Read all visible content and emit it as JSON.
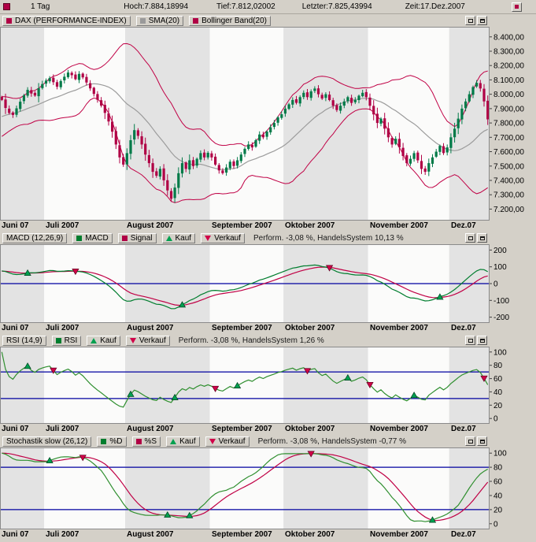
{
  "header": {
    "period": "1 Tag",
    "high": "Hoch:7.884,18994",
    "low": "Tief:7.812,02002",
    "last": "Letzter:7.825,43994",
    "time": "Zeit:17.Dez.2007"
  },
  "x_labels": [
    "Juni 07",
    "Juli 2007",
    "August 2007",
    "September 2007",
    "Oktober 2007",
    "November 2007",
    "Dez.07"
  ],
  "panels": {
    "price": {
      "legend": [
        {
          "label": "DAX (PERFORMANCE-INDEX)",
          "color": "#b00045"
        },
        {
          "label": "SMA(20)",
          "color": "#9a9a9a"
        },
        {
          "label": "Bollinger Band(20)",
          "color": "#b00045"
        }
      ],
      "y_ticks": [
        {
          "v": 8400,
          "label": "8.400,00"
        },
        {
          "v": 8300,
          "label": "8.300,00"
        },
        {
          "v": 8200,
          "label": "8.200,00"
        },
        {
          "v": 8100,
          "label": "8.100,00"
        },
        {
          "v": 8000,
          "label": "8.000,00"
        },
        {
          "v": 7900,
          "label": "7.900,00"
        },
        {
          "v": 7800,
          "label": "7.800,00"
        },
        {
          "v": 7700,
          "label": "7.700,00"
        },
        {
          "v": 7600,
          "label": "7.600,00"
        },
        {
          "v": 7500,
          "label": "7.500,00"
        },
        {
          "v": 7400,
          "label": "7.400,00"
        },
        {
          "v": 7300,
          "label": "7.300,00"
        },
        {
          "v": 7200,
          "label": "7.200,00"
        }
      ]
    },
    "macd": {
      "title": "MACD (12,26,9)",
      "series": [
        {
          "label": "MACD",
          "color": "#007d2e"
        },
        {
          "label": "Signal",
          "color": "#c00045"
        }
      ],
      "buy_label": "Kauf",
      "sell_label": "Verkauf",
      "performance": "Perform. -3,08 %, HandelsSystem 10,13 %",
      "y_ticks": [
        {
          "v": 200,
          "label": "200"
        },
        {
          "v": 100,
          "label": "100"
        },
        {
          "v": 0,
          "label": "0"
        },
        {
          "v": -100,
          "label": "-100"
        },
        {
          "v": -200,
          "label": "-200"
        }
      ]
    },
    "rsi": {
      "title": "RSI (14,9)",
      "series": [
        {
          "label": "RSI",
          "color": "#2f8f2f"
        }
      ],
      "buy_label": "Kauf",
      "sell_label": "Verkauf",
      "performance": "Perform. -3,08 %, HandelsSystem 1,26 %",
      "thresholds": [
        30,
        70
      ],
      "y_ticks": [
        {
          "v": 100,
          "label": "100"
        },
        {
          "v": 80,
          "label": "80"
        },
        {
          "v": 60,
          "label": "60"
        },
        {
          "v": 40,
          "label": "40"
        },
        {
          "v": 20,
          "label": "20"
        },
        {
          "v": 0,
          "label": "0"
        }
      ]
    },
    "stoch": {
      "title": "Stochastik slow (26,12)",
      "series": [
        {
          "label": "%D",
          "color": "#2f8f2f"
        },
        {
          "label": "%S",
          "color": "#c00045"
        }
      ],
      "buy_label": "Kauf",
      "sell_label": "Verkauf",
      "performance": "Perform. -3,08 %, HandelsSystem -0,77 %",
      "thresholds": [
        20,
        80
      ],
      "y_ticks": [
        {
          "v": 100,
          "label": "100"
        },
        {
          "v": 80,
          "label": "80"
        },
        {
          "v": 60,
          "label": "60"
        },
        {
          "v": 40,
          "label": "40"
        },
        {
          "v": 20,
          "label": "20"
        },
        {
          "v": 0,
          "label": "0"
        }
      ]
    }
  },
  "chart_data": {
    "type": "candlestick",
    "title": "DAX (PERFORMANCE-INDEX)",
    "timeframe": "1 Tag",
    "x_month_labels": [
      "Juni 07",
      "Juli 2007",
      "August 2007",
      "September 2007",
      "Oktober 2007",
      "November 2007",
      "Dez.07"
    ],
    "month_start_indices": [
      0,
      12,
      34,
      57,
      77,
      100,
      122
    ],
    "closes": [
      7960,
      7905,
      7870,
      7856,
      7902,
      7948,
      7992,
      8031,
      8005,
      7991,
      8042,
      8071,
      8095,
      8112,
      8084,
      8053,
      8092,
      8122,
      8151,
      8133,
      8105,
      8142,
      8118,
      8082,
      8041,
      8002,
      7962,
      7921,
      7870,
      7810,
      7740,
      7650,
      7560,
      7510,
      7590,
      7680,
      7750,
      7710,
      7650,
      7580,
      7520,
      7460,
      7432,
      7480,
      7400,
      7330,
      7272,
      7350,
      7450,
      7520,
      7480,
      7540,
      7500,
      7550,
      7590,
      7560,
      7592,
      7560,
      7510,
      7470,
      7450,
      7490,
      7530,
      7500,
      7540,
      7580,
      7620,
      7650,
      7630,
      7680,
      7720,
      7700,
      7740,
      7770,
      7800,
      7840,
      7861,
      7900,
      7930,
      7960,
      7940,
      7980,
      8010,
      7980,
      8020,
      8040,
      8000,
      7970,
      8000,
      7960,
      7920,
      7890,
      7920,
      7950,
      7980,
      7940,
      7960,
      7990,
      8010,
      7980,
      7920,
      7860,
      7800,
      7830,
      7760,
      7700,
      7650,
      7690,
      7630,
      7570,
      7520,
      7550,
      7590,
      7540,
      7480,
      7460,
      7520,
      7560,
      7600,
      7640,
      7590,
      7630,
      7700,
      7760,
      7830,
      7900,
      7950,
      8000,
      8050,
      8080,
      8040,
      7950,
      7825
    ],
    "last_close": 7825.44,
    "ylim": [
      7120,
      8470
    ],
    "overlays": [
      "SMA(20)",
      "Bollinger Band(20)"
    ],
    "indicators": [
      {
        "name": "MACD",
        "params": [
          12,
          26,
          9
        ],
        "ylim": [
          -235,
          235
        ]
      },
      {
        "name": "RSI",
        "params": [
          14,
          9
        ],
        "ylim": [
          0,
          100
        ],
        "thresholds": [
          30,
          70
        ]
      },
      {
        "name": "Stochastik slow",
        "params": [
          26,
          12
        ],
        "ylim": [
          0,
          100
        ],
        "thresholds": [
          20,
          80
        ]
      }
    ],
    "colors": {
      "up": "#007a48",
      "down": "#b00045",
      "sma": "#9c9c9c",
      "bollinger": "#c00045",
      "macd": "#007d2e",
      "signal": "#c00045",
      "rsi": "#2f8f2f",
      "stoch_d": "#2f8f2f",
      "stoch_s": "#c00045",
      "threshold": "#0000a0",
      "band_light": "#fbfbfa",
      "band_dark": "#e3e3e3",
      "chrome": "#d4d0c8"
    }
  }
}
